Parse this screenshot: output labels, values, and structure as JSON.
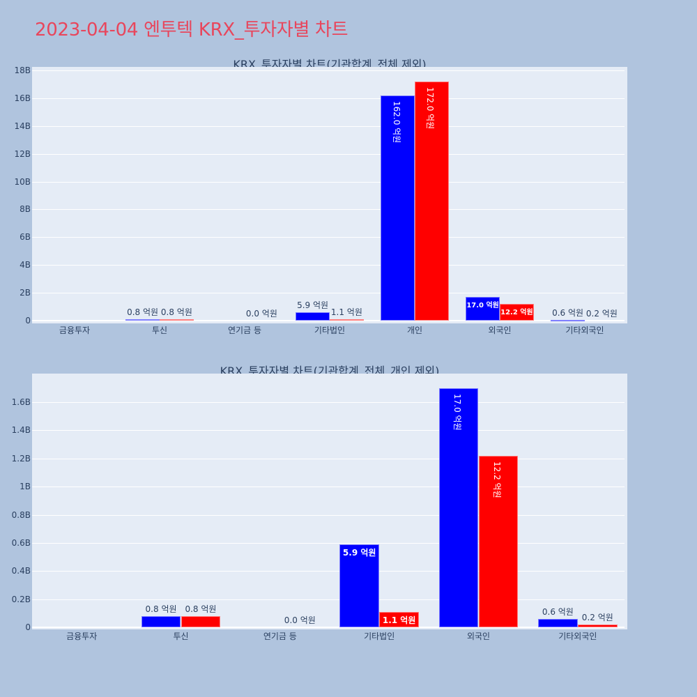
{
  "page_title": "2023-04-04 엔투텍 KRX_투자자별 차트",
  "colors": {
    "title": "#e8465c",
    "buy": "#0000ff",
    "sell": "#ff0000",
    "background": "#b0c4de",
    "plot_bg": "#e5ecf6"
  },
  "chart_data": [
    {
      "type": "bar",
      "title": "KRX_투자자별 차트(기관합계_전체 제외)",
      "xlabel": "",
      "ylabel": "",
      "ylim": [
        0,
        18000000000
      ],
      "yticks": [
        "0",
        "2B",
        "4B",
        "6B",
        "8B",
        "10B",
        "12B",
        "14B",
        "16B",
        "18B"
      ],
      "grid": true,
      "categories": [
        "금융투자",
        "투신",
        "연기금 등",
        "기타법인",
        "개인",
        "외국인",
        "기타외국인"
      ],
      "series": [
        {
          "name": "series-blue",
          "color": "#0000ff",
          "values": [
            0,
            80000000,
            0,
            590000000,
            16200000000,
            1700000000,
            60000000
          ],
          "labels": [
            "",
            "0.8 억원",
            "",
            "5.9 억원",
            "162.0 억원",
            "17.0 억원",
            "0.6 억원"
          ]
        },
        {
          "name": "series-red",
          "color": "#ff0000",
          "values": [
            0,
            80000000,
            0,
            110000000,
            17200000000,
            1220000000,
            20000000
          ],
          "labels": [
            "",
            "0.8 억원",
            "0.0 억원",
            "1.1 억원",
            "172.0 억원",
            "12.2 억원",
            "0.2 억원"
          ]
        }
      ]
    },
    {
      "type": "bar",
      "title": "KRX_투자자별 차트(기관합계_전체_개인 제외)",
      "xlabel": "",
      "ylabel": "",
      "ylim": [
        0,
        1800000000
      ],
      "yticks": [
        "0",
        "0.2B",
        "0.4B",
        "0.6B",
        "0.8B",
        "1B",
        "1.2B",
        "1.4B",
        "1.6B"
      ],
      "grid": true,
      "categories": [
        "금융투자",
        "투신",
        "연기금 등",
        "기타법인",
        "외국인",
        "기타외국인"
      ],
      "series": [
        {
          "name": "series-blue",
          "color": "#0000ff",
          "values": [
            0,
            80000000,
            0,
            590000000,
            1700000000,
            60000000
          ],
          "labels": [
            "",
            "0.8 억원",
            "",
            "5.9 억원",
            "17.0 억원",
            "0.6 억원"
          ]
        },
        {
          "name": "series-red",
          "color": "#ff0000",
          "values": [
            0,
            80000000,
            0,
            110000000,
            1220000000,
            20000000
          ],
          "labels": [
            "",
            "0.8 억원",
            "0.0 억원",
            "1.1 억원",
            "12.2 억원",
            "0.2 억원"
          ]
        }
      ]
    }
  ]
}
